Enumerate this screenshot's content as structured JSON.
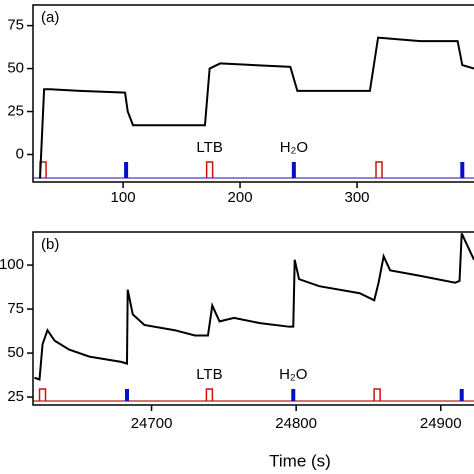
{
  "chart_data": [
    {
      "type": "line",
      "panel_label": "(a)",
      "x": [
        29,
        32.5,
        37.6,
        63,
        101.7,
        104,
        108.5,
        140,
        170,
        174,
        183,
        243,
        249,
        311,
        318,
        354,
        386,
        390,
        400
      ],
      "series": [
        {
          "name": "signal",
          "color": "#000000",
          "values": [
            -14,
            38,
            38,
            37,
            36,
            25,
            17,
            17,
            17,
            50,
            53,
            51,
            37,
            37,
            68,
            66,
            66,
            52,
            50
          ]
        }
      ],
      "red_pulses": [
        31.6,
        174,
        318.8
      ],
      "blue_pulses": [
        102.6,
        246,
        390
      ],
      "red_color": "#d01010",
      "blue_color": "#0010c8",
      "baseline_color": "#6a5acd",
      "annotations": [
        "LTB",
        "H₂O"
      ],
      "xlim": [
        23,
        400
      ],
      "ylim": [
        -16,
        87
      ],
      "xticks": [
        100,
        200,
        300
      ],
      "yticks": [
        0,
        25,
        50,
        75
      ]
    },
    {
      "type": "line",
      "panel_label": "(b)",
      "xlabel": "Time (s)",
      "x": [
        24619,
        24622.5,
        24624.6,
        24628,
        24633,
        24643,
        24657,
        24679,
        24683,
        24683.5,
        24687,
        24695,
        24716,
        24730,
        24739,
        24742,
        24747,
        24757,
        24775,
        24795,
        24798,
        24799,
        24802,
        24816,
        24844,
        24854,
        24857,
        24860.5,
        24865,
        24885,
        24910,
        24913,
        24914.5,
        24923
      ],
      "series": [
        {
          "name": "signal",
          "color": "#000000",
          "values": [
            36,
            35,
            55,
            63,
            57,
            52,
            48,
            45,
            44,
            86,
            72,
            66,
            63,
            60,
            60,
            77,
            68,
            70,
            67,
            65,
            65,
            103,
            92,
            88,
            84,
            80,
            90,
            105,
            97,
            94,
            90,
            91,
            118,
            103
          ]
        }
      ],
      "red_pulses": [
        24624.6,
        24740,
        24856
      ],
      "blue_pulses": [
        24683,
        24798,
        24914.5
      ],
      "red_color": "#d01010",
      "blue_color": "#0010c8",
      "baseline_color": "#d04040",
      "annotations": [
        "LTB",
        "H₂O"
      ],
      "xlim": [
        24618,
        24923
      ],
      "ylim": [
        20.5,
        118.8
      ],
      "xticks": [
        24700,
        24800,
        24900
      ],
      "yticks": [
        25,
        50,
        75,
        100
      ]
    }
  ]
}
